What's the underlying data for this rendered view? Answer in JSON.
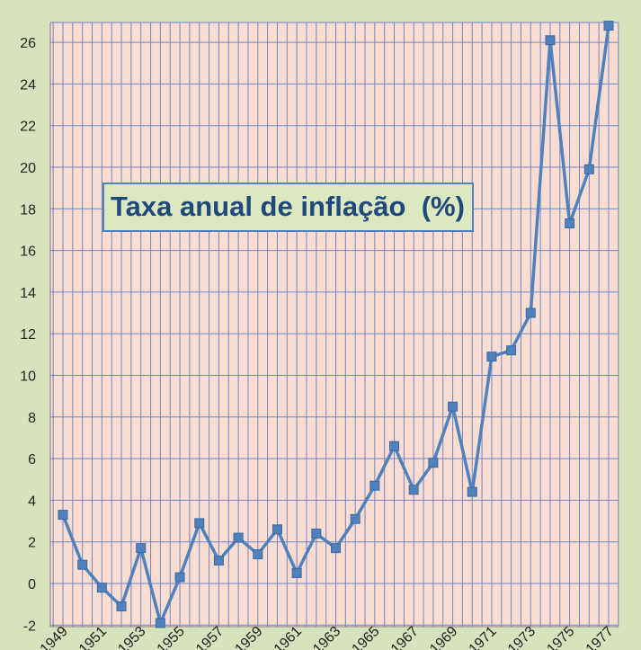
{
  "chart_data": {
    "type": "line",
    "title": "Taxa anual de inflação  (%)",
    "xlabel": "",
    "ylabel": "",
    "x": [
      1949,
      1950,
      1951,
      1952,
      1953,
      1954,
      1955,
      1956,
      1957,
      1958,
      1959,
      1960,
      1961,
      1962,
      1963,
      1964,
      1965,
      1966,
      1967,
      1968,
      1969,
      1970,
      1971,
      1972,
      1973,
      1974,
      1975,
      1976,
      1977
    ],
    "x_tick_labels": [
      "1949",
      "1951",
      "1953",
      "1955",
      "1957",
      "1959",
      "1961",
      "1963",
      "1965",
      "1967",
      "1969",
      "1971",
      "1973",
      "1975",
      "1977"
    ],
    "y_tick_labels": [
      "-2",
      "0",
      "2",
      "4",
      "6",
      "8",
      "10",
      "12",
      "14",
      "16",
      "18",
      "20",
      "22",
      "24",
      "26"
    ],
    "ylim": [
      -2,
      27
    ],
    "series": [
      {
        "values": [
          3.3,
          0.9,
          -0.2,
          -1.1,
          1.7,
          -1.9,
          0.3,
          2.9,
          1.1,
          2.2,
          1.4,
          2.6,
          0.5,
          2.4,
          1.7,
          3.1,
          4.7,
          6.6,
          4.5,
          5.8,
          8.5,
          4.4,
          10.9,
          11.2,
          13.0,
          26.1,
          17.3,
          19.9,
          26.8
        ],
        "color": "#4f81bd"
      }
    ],
    "grid": true,
    "plot_background": "#fbdcd0",
    "grid_color": "#6f86c6",
    "marker": "square"
  }
}
